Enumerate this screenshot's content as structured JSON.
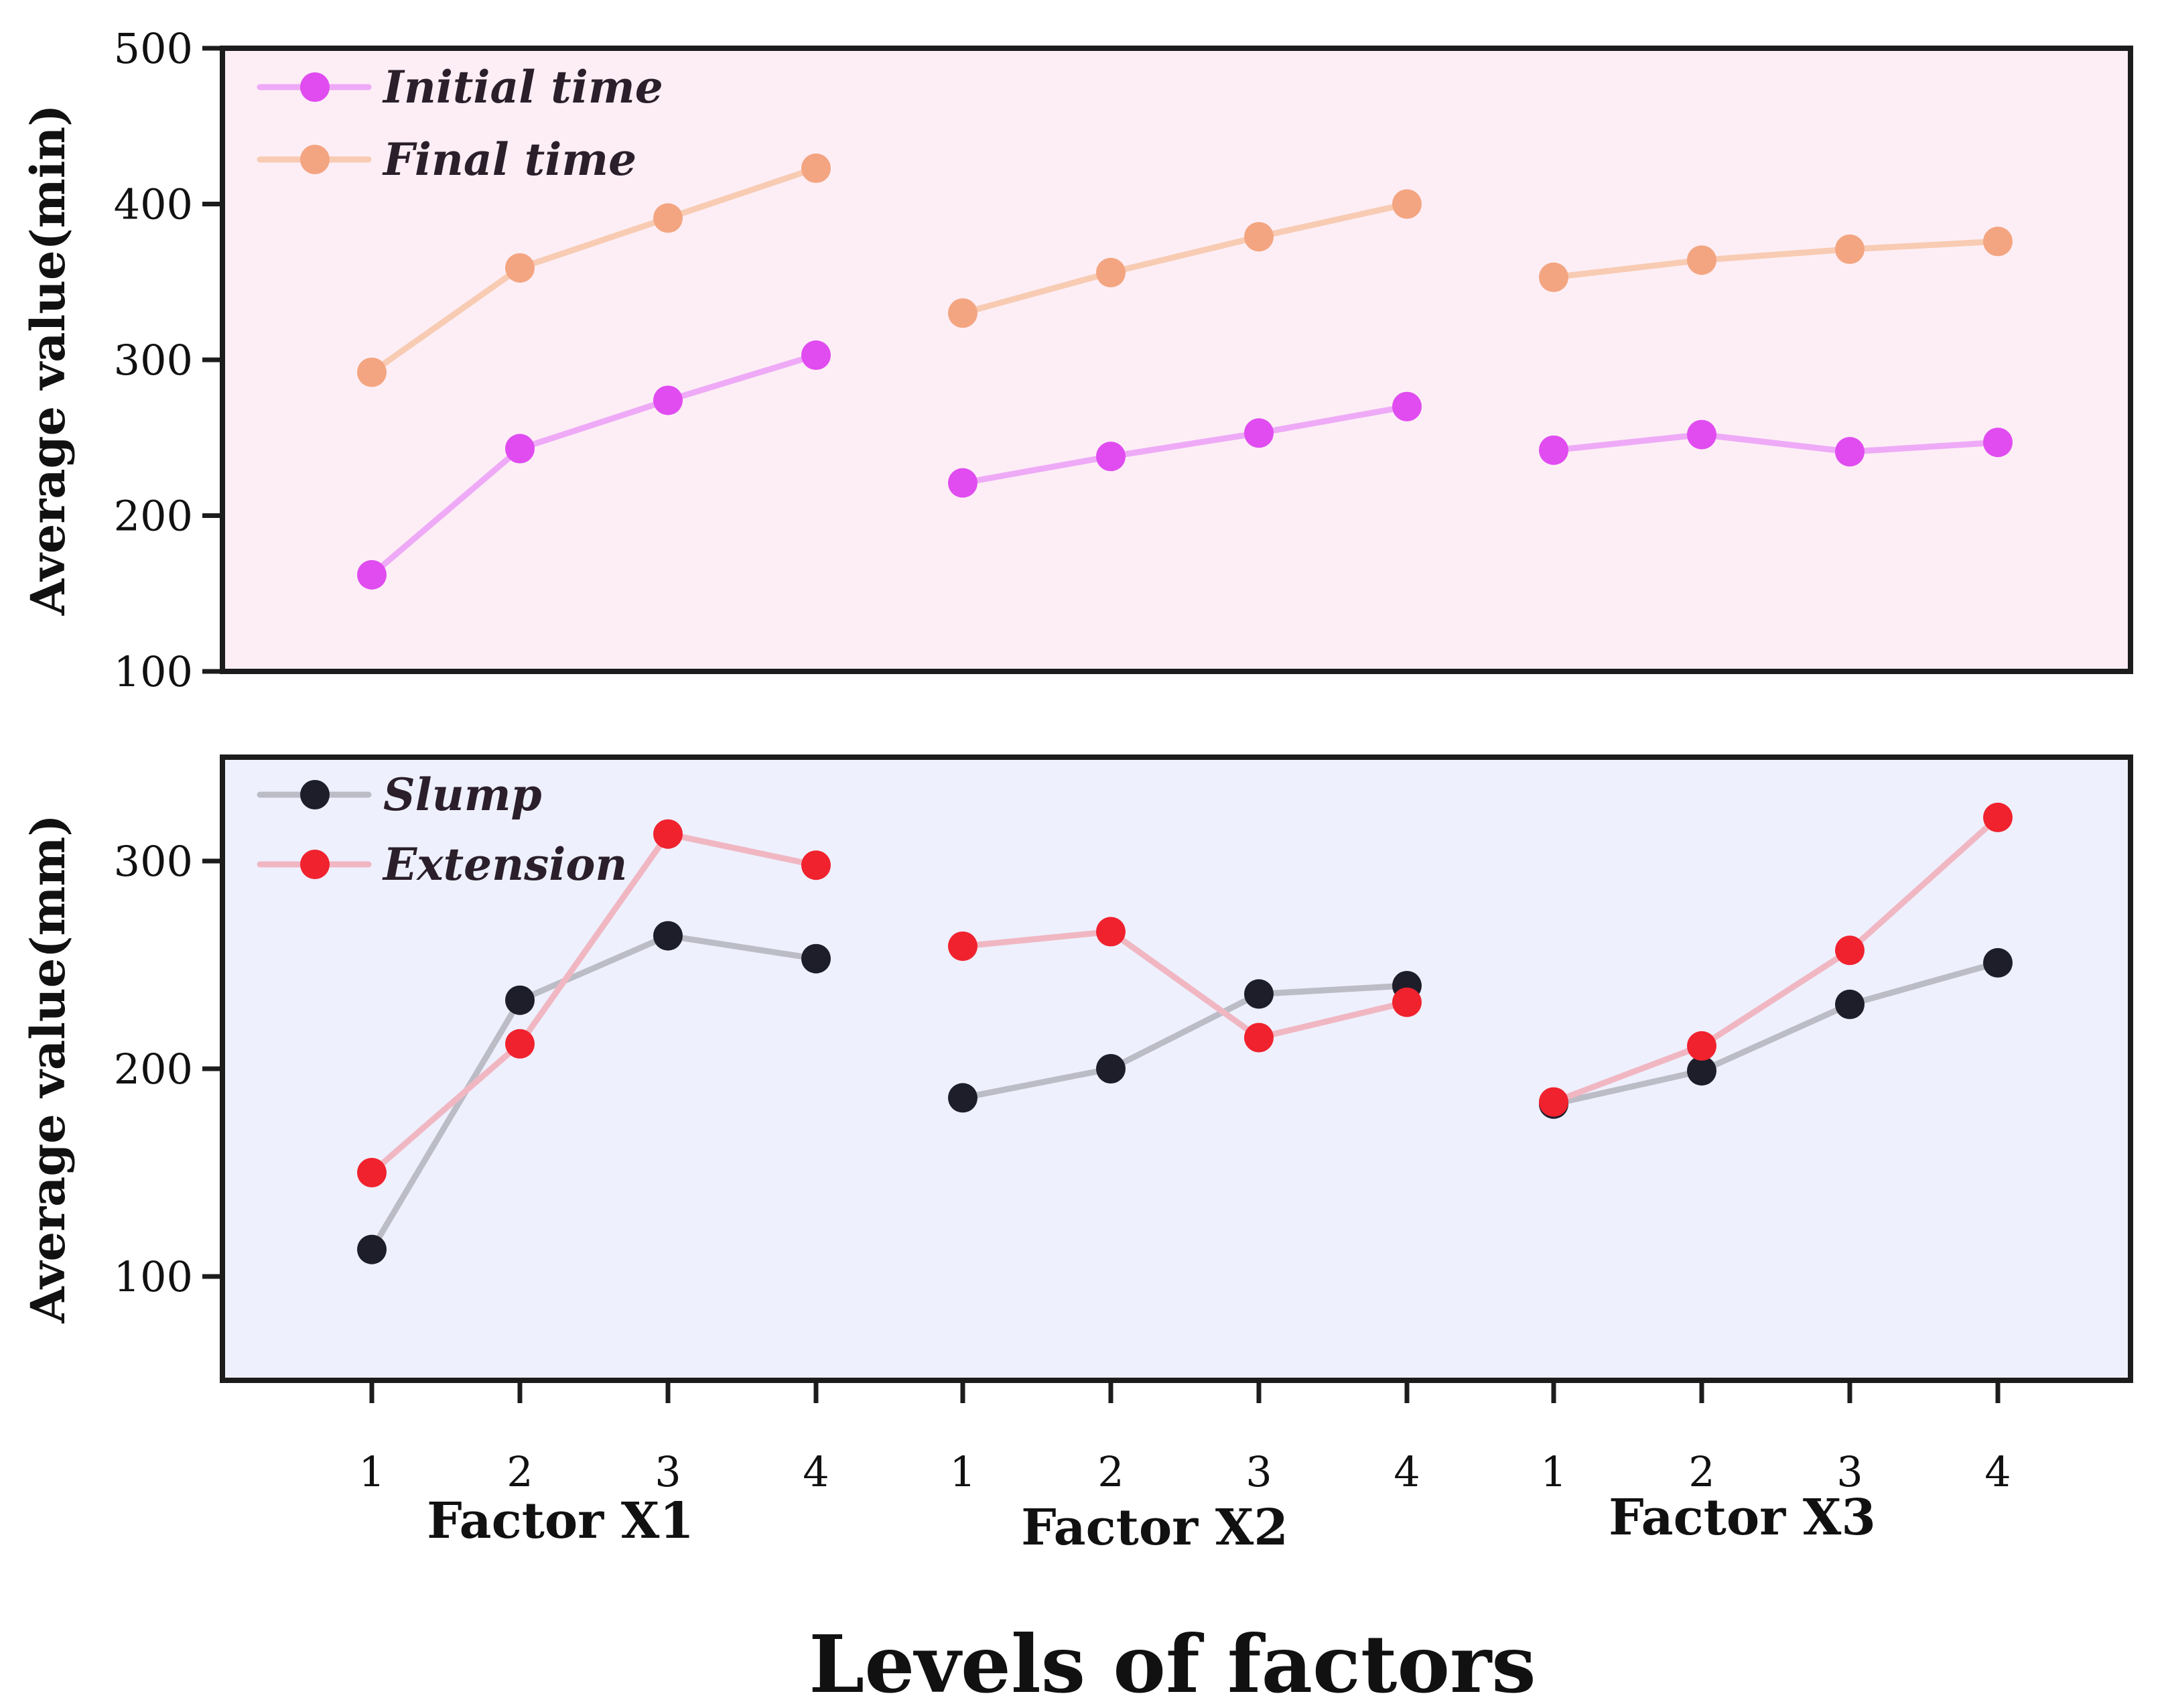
{
  "chart_data": [
    {
      "type": "line",
      "ylabel": "Average value(min)",
      "ylim": [
        100,
        500
      ],
      "yticks": [
        100,
        200,
        300,
        400,
        500
      ],
      "background": "#fdeef5",
      "grid": false,
      "legend_placement": "top-left",
      "series": [
        {
          "name": "Initial time",
          "color": "#e04cf0",
          "line_color": "#eeaaf7",
          "groups": [
            [
              162,
              243,
              274,
              303
            ],
            [
              221,
              238,
              253,
              270
            ],
            [
              242,
              252,
              241,
              247
            ]
          ]
        },
        {
          "name": "Final  time",
          "color": "#f3a581",
          "line_color": "#f8cbb3",
          "groups": [
            [
              292,
              359,
              391,
              423
            ],
            [
              330,
              356,
              379,
              400
            ],
            [
              353,
              364,
              371,
              376
            ]
          ]
        }
      ]
    },
    {
      "type": "line",
      "ylabel": "Average value(mm)",
      "ylim": [
        50,
        350
      ],
      "yticks": [
        100,
        200,
        300
      ],
      "background": "#eef0fd",
      "grid": false,
      "legend_placement": "top-left",
      "series": [
        {
          "name": "Slump",
          "color": "#1e1e2b",
          "line_color": "#bcbcc6",
          "groups": [
            [
              113,
              233,
              264,
              253
            ],
            [
              186,
              200,
              236,
              240
            ],
            [
              183,
              199,
              231,
              251
            ]
          ]
        },
        {
          "name": "Extension",
          "color": "#f0222e",
          "line_color": "#f0b7c2",
          "groups": [
            [
              150,
              212,
              313,
              298
            ],
            [
              259,
              266,
              215,
              232
            ],
            [
              184,
              211,
              257,
              321
            ]
          ]
        }
      ]
    }
  ],
  "x_axis": {
    "tick_labels": [
      "1",
      "2",
      "3",
      "4",
      "1",
      "2",
      "3",
      "4",
      "1",
      "2",
      "3",
      "4"
    ],
    "group_labels": [
      "Factor X1",
      "Factor X2",
      "Factor X3"
    ],
    "xlabel": "Levels of factors"
  }
}
